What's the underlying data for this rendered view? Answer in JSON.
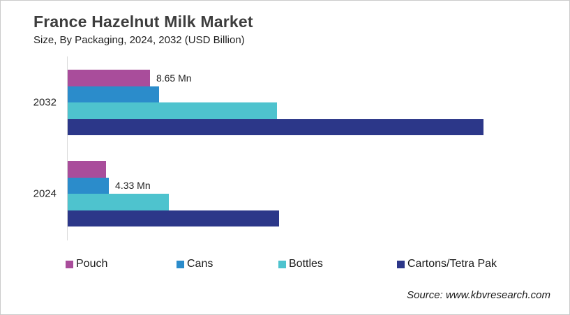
{
  "header": {
    "title": "France Hazelnut Milk Market",
    "subtitle": "Size, By Packaging, 2024, 2032 (USD Billion)"
  },
  "source": "Source: www.kbvresearch.com",
  "colors": {
    "pouch": "#a94d9b",
    "cans": "#2b8ccb",
    "bottles": "#4ec3ce",
    "cartons": "#2c3789",
    "title_text": "#3d3d3d",
    "body_text": "#1f1f1f",
    "axis": "#d9d9d9"
  },
  "chart_data": {
    "type": "bar",
    "orientation": "horizontal",
    "title": "France Hazelnut Milk Market",
    "subtitle": "Size, By Packaging, 2024, 2032 (USD Billion)",
    "unit": "Mn",
    "categories": [
      "2032",
      "2024"
    ],
    "series": [
      {
        "name": "Pouch",
        "color_key": "pouch",
        "values": [
          8.65,
          4.0
        ]
      },
      {
        "name": "Cans",
        "color_key": "cans",
        "values": [
          9.6,
          4.33
        ]
      },
      {
        "name": "Bottles",
        "color_key": "bottles",
        "values": [
          22.0,
          10.6
        ]
      },
      {
        "name": "Cartons/Tetra Pak",
        "color_key": "cartons",
        "values": [
          43.7,
          22.2
        ]
      }
    ],
    "data_labels": [
      {
        "category": "2032",
        "series": "Pouch",
        "text": "8.65 Mn"
      },
      {
        "category": "2024",
        "series": "Cans",
        "text": "4.33 Mn"
      }
    ],
    "xlim": [
      0,
      43.7
    ],
    "grid": false,
    "legend_position": "bottom"
  },
  "legend": {
    "items": [
      {
        "label": "Pouch",
        "color_key": "pouch"
      },
      {
        "label": "Cans",
        "color_key": "cans"
      },
      {
        "label": "Bottles",
        "color_key": "bottles"
      },
      {
        "label": "Cartons/Tetra Pak",
        "color_key": "cartons"
      }
    ]
  }
}
